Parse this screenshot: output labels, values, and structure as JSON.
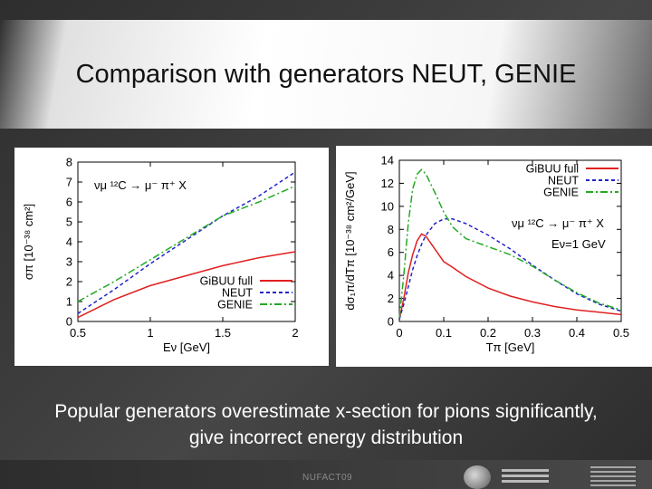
{
  "slide": {
    "title": "Comparison with generators NEUT, GENIE",
    "caption_line1": "Popular generators overestimate x-section for pions significantly,",
    "caption_line2": "give incorrect energy distribution",
    "footer": "NUFACT09"
  },
  "colors": {
    "gibuu": "#e02020",
    "neut": "#2222cc",
    "genie": "#22aa22"
  },
  "chart_data": [
    {
      "type": "line",
      "xlabel": "Eν [GeV]",
      "ylabel": "σπ [10⁻³⁸ cm²]",
      "annotation": "νμ ¹²C → μ⁻ π⁺ X",
      "xlim": [
        0.5,
        2
      ],
      "ylim": [
        0,
        8
      ],
      "xticks": [
        "0.5",
        "1",
        "1.5",
        "2"
      ],
      "yticks": [
        "0",
        "1",
        "2",
        "3",
        "4",
        "5",
        "6",
        "7",
        "8"
      ],
      "legend_position": "bottom-right",
      "series": [
        {
          "name": "GiBUU full",
          "style": "solid",
          "x": [
            0.5,
            0.75,
            1.0,
            1.25,
            1.5,
            1.75,
            2.0
          ],
          "y": [
            0.2,
            1.1,
            1.8,
            2.3,
            2.8,
            3.2,
            3.5
          ]
        },
        {
          "name": "NEUT",
          "style": "dashed",
          "x": [
            0.5,
            0.75,
            1.0,
            1.25,
            1.5,
            1.75,
            2.0
          ],
          "y": [
            0.4,
            1.6,
            2.9,
            4.1,
            5.3,
            6.3,
            7.5
          ]
        },
        {
          "name": "GENIE",
          "style": "dashdot",
          "x": [
            0.5,
            0.75,
            1.0,
            1.25,
            1.5,
            1.75,
            2.0
          ],
          "y": [
            1.0,
            2.0,
            3.1,
            4.2,
            5.3,
            6.0,
            6.8
          ]
        }
      ]
    },
    {
      "type": "line",
      "xlabel": "Tπ [GeV]",
      "ylabel": "dσ₁π/dTπ [10⁻³⁸ cm²/GeV]",
      "annotation_reaction": "νμ ¹²C → μ⁻ π⁺ X",
      "annotation_energy": "Eν=1 GeV",
      "xlim": [
        0,
        0.5
      ],
      "ylim": [
        0,
        14
      ],
      "xticks": [
        "0",
        "0.1",
        "0.2",
        "0.3",
        "0.4",
        "0.5"
      ],
      "yticks": [
        "0",
        "2",
        "4",
        "6",
        "8",
        "10",
        "12",
        "14"
      ],
      "legend_position": "top-right",
      "series": [
        {
          "name": "GiBUU full",
          "style": "solid",
          "x": [
            0,
            0.01,
            0.02,
            0.03,
            0.04,
            0.05,
            0.06,
            0.08,
            0.1,
            0.12,
            0.15,
            0.2,
            0.25,
            0.3,
            0.35,
            0.4,
            0.45,
            0.5
          ],
          "y": [
            0.2,
            2.0,
            4.2,
            5.8,
            7.0,
            7.6,
            7.4,
            6.3,
            5.2,
            4.7,
            3.9,
            2.9,
            2.2,
            1.7,
            1.3,
            1.0,
            0.8,
            0.6
          ]
        },
        {
          "name": "NEUT",
          "style": "dashed",
          "x": [
            0,
            0.01,
            0.02,
            0.03,
            0.04,
            0.05,
            0.06,
            0.08,
            0.1,
            0.12,
            0.15,
            0.2,
            0.25,
            0.3,
            0.35,
            0.4,
            0.45,
            0.5
          ],
          "y": [
            0.2,
            1.5,
            3.0,
            4.5,
            5.7,
            6.7,
            7.5,
            8.5,
            8.9,
            8.9,
            8.5,
            7.5,
            6.3,
            4.9,
            3.6,
            2.4,
            1.5,
            0.9
          ]
        },
        {
          "name": "GENIE",
          "style": "dashdot",
          "x": [
            0,
            0.01,
            0.02,
            0.03,
            0.04,
            0.05,
            0.06,
            0.08,
            0.1,
            0.12,
            0.15,
            0.2,
            0.25,
            0.3,
            0.35,
            0.4,
            0.45,
            0.5
          ],
          "y": [
            0.3,
            4.0,
            8.5,
            11.5,
            12.8,
            13.2,
            12.8,
            11.2,
            9.5,
            8.2,
            7.2,
            6.5,
            5.8,
            4.8,
            3.6,
            2.5,
            1.6,
            1.0
          ]
        }
      ]
    }
  ]
}
